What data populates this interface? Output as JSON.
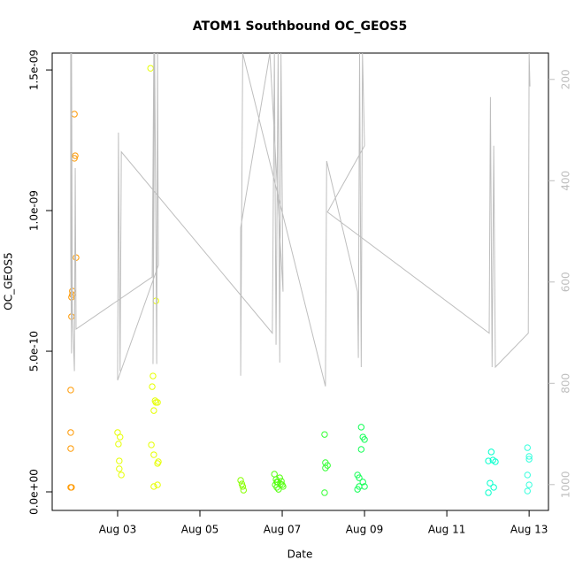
{
  "chart_data": {
    "type": "scatter",
    "title": "ATOM1 Southbound OC_GEOS5",
    "x_label": "Date",
    "y_label": "OC_GEOS5",
    "xlim": [
      1.41,
      13.47
    ],
    "xticks": [
      {
        "value": 3,
        "label": "Aug 03"
      },
      {
        "value": 5,
        "label": "Aug 05"
      },
      {
        "value": 7,
        "label": "Aug 07"
      },
      {
        "value": 9,
        "label": "Aug 09"
      },
      {
        "value": 11,
        "label": "Aug 11"
      },
      {
        "value": 13,
        "label": "Aug 13"
      }
    ],
    "ylim": [
      -6.6e-11,
      1.56e-09
    ],
    "yticks": [
      {
        "value": 0,
        "label": "0.0e+00"
      },
      {
        "value": 5e-10,
        "label": "5.0e-10"
      },
      {
        "value": 1e-09,
        "label": "1.0e-09"
      },
      {
        "value": 1.5e-09,
        "label": "1.5e-09"
      }
    ],
    "y2lim": [
      1051,
      148
    ],
    "y2ticks": [
      200,
      400,
      600,
      800,
      1000
    ],
    "series": [
      {
        "color": "#FF9900",
        "x": [
          1.95,
          1.97,
          1.95,
          1.99,
          1.9,
          1.9,
          1.88,
          1.88,
          1.86,
          1.86,
          1.86,
          1.86,
          1.88
        ],
        "values": [
          1.343e-09,
          1.195e-09,
          1.186e-09,
          8.33e-10,
          7.14e-10,
          7.01e-10,
          6.92e-10,
          6.23e-10,
          3.62e-10,
          2.11e-10,
          1.54e-10,
          1.6e-11,
          1.6e-11
        ]
      },
      {
        "color": "#E6FF00",
        "x": [
          3.0,
          3.06,
          3.02,
          3.04,
          3.04,
          3.09,
          3.8,
          3.93,
          3.86,
          3.84,
          3.91,
          3.97,
          3.93,
          3.88,
          3.82,
          3.88,
          3.97,
          3.99,
          3.88,
          3.97
        ],
        "values": [
          2.11e-10,
          1.95e-10,
          1.7e-10,
          1.1e-10,
          8.2e-11,
          6e-11,
          1.506e-09,
          6.79e-10,
          4.12e-10,
          3.74e-10,
          3.24e-10,
          3.18e-10,
          3.18e-10,
          2.89e-10,
          1.67e-10,
          1.32e-10,
          1.01e-10,
          1.07e-10,
          1.9e-11,
          2.5e-11
        ]
      },
      {
        "color": "#88FF00",
        "x": [
          5.99,
          6.02,
          6.04,
          6.06
        ],
        "values": [
          4.1e-11,
          2.8e-11,
          1.9e-11,
          6e-12
        ]
      },
      {
        "color": "#55FF11",
        "x": [
          6.81,
          6.85,
          6.89,
          6.94,
          6.98,
          7.0,
          7.02,
          6.83,
          6.87,
          6.91,
          6.96,
          6.87
        ],
        "values": [
          6.3e-11,
          4.4e-11,
          3.5e-11,
          5e-11,
          3.8e-11,
          2.5e-11,
          1.9e-11,
          2.5e-11,
          1.6e-11,
          9e-12,
          2.8e-11,
          3.5e-11
        ]
      },
      {
        "color": "#33FF33",
        "x": [
          8.03,
          8.05,
          8.1,
          8.05,
          8.03
        ],
        "values": [
          2.04e-10,
          1.04e-10,
          9.4e-11,
          8.5e-11,
          -3e-12
        ]
      },
      {
        "color": "#11FF55",
        "x": [
          8.92,
          8.96,
          9.0,
          8.92,
          8.83,
          8.87,
          8.96,
          8.87,
          8.83,
          9.0
        ],
        "values": [
          2.3e-10,
          1.95e-10,
          1.86e-10,
          1.51e-10,
          6e-11,
          5e-11,
          3.5e-11,
          1.9e-11,
          9e-12,
          1.9e-11
        ]
      },
      {
        "color": "#00FFCC",
        "x": [
          12.08,
          12.01,
          12.12,
          12.18,
          12.05,
          12.14,
          12.01
        ],
        "values": [
          1.42e-10,
          1.1e-10,
          1.13e-10,
          1.07e-10,
          3.1e-11,
          1.6e-11,
          -3e-12
        ]
      },
      {
        "color": "#33FFDD",
        "x": [
          12.96,
          13.0,
          13.0,
          12.96,
          13.0,
          12.96
        ],
        "values": [
          1.57e-10,
          1.26e-10,
          1.16e-10,
          6e-11,
          2.5e-11,
          3e-12
        ]
      },
      {
        "color": "#BEBEBE",
        "axis": "y2",
        "line": true,
        "x": [
          1.86,
          1.86,
          1.88,
          1.88,
          1.9,
          1.95,
          1.97,
          1.99,
          3.84,
          3.88,
          3.86,
          3.9,
          3.95,
          3.97,
          3.99,
          3.0,
          3.02,
          3.06,
          3.09,
          6.76,
          6.81,
          6.85,
          6.9,
          6.94,
          6.97,
          7.02,
          6.7,
          5.99,
          5.99,
          6.04,
          8.05,
          8.08,
          8.83,
          8.85,
          8.88,
          8.92,
          8.95,
          9.0,
          8.1,
          12.03,
          12.06,
          12.1,
          12.14,
          12.18,
          12.98,
          13.0,
          13.02
        ],
        "values": [
          148,
          532,
          741,
          148,
          654,
          776,
          375,
          693,
          590,
          148,
          762,
          148,
          762,
          148,
          567,
          794,
          305,
          776,
          343,
          701,
          148,
          724,
          148,
          759,
          148,
          619,
          148,
          493,
          785,
          148,
          806,
          361,
          619,
          750,
          148,
          768,
          148,
          331,
          462,
          701,
          235,
          768,
          331,
          768,
          701,
          148,
          214
        ]
      }
    ]
  }
}
